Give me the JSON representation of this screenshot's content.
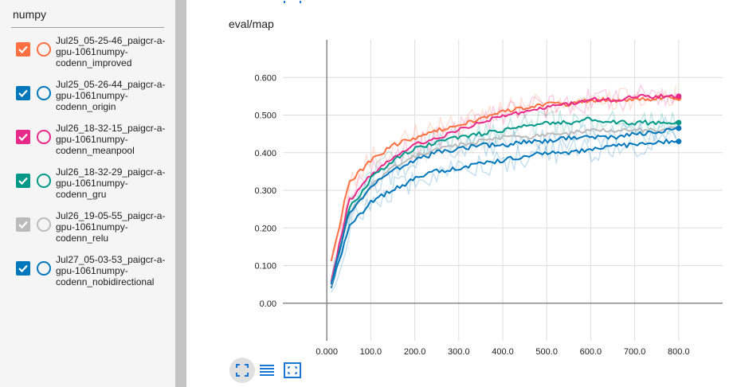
{
  "sidebar": {
    "search_value": "numpy",
    "runs": [
      {
        "label": "Jul25_05-25-46_paigcr-a-\ngpu-1061numpy-\ncodenn_improved",
        "color": "#ff7043",
        "checked": true
      },
      {
        "label": "Jul25_05-26-44_paigcr-a-\ngpu-1061numpy-\ncodenn_origin",
        "color": "#0077bb",
        "checked": true
      },
      {
        "label": "Jul26_18-32-15_paigcr-a-\ngpu-1061numpy-\ncodenn_meanpool",
        "color": "#e7298a",
        "checked": true
      },
      {
        "label": "Jul26_18-32-29_paigcr-a-\ngpu-1061numpy-\ncodenn_gru",
        "color": "#009988",
        "checked": true
      },
      {
        "label": "Jul26_19-05-55_paigcr-a-\ngpu-1061numpy-\ncodenn_relu",
        "color": "#bbbbbb",
        "checked": true
      },
      {
        "label": "Jul27_05-03-53_paigcr-a-\ngpu-1061numpy-\ncodenn_nobidirectional",
        "color": "#0077bb",
        "checked": true
      }
    ]
  },
  "toolbar": {
    "icons": [
      "fit-domain-icon",
      "toggle-log-scale-icon",
      "expand-chart-icon"
    ]
  },
  "chart_data": {
    "type": "line",
    "title": "eval/map",
    "xlabel": "",
    "ylabel": "",
    "xlim": [
      -100,
      900
    ],
    "ylim": [
      -0.1,
      0.7
    ],
    "xticks": [
      0,
      100,
      200,
      300,
      400,
      500,
      600,
      700,
      800
    ],
    "xtick_labels": [
      "0.000",
      "100.0",
      "200.0",
      "300.0",
      "400.0",
      "500.0",
      "600.0",
      "700.0",
      "800.0"
    ],
    "yticks": [
      0,
      0.1,
      0.2,
      0.3,
      0.4,
      0.5,
      0.6
    ],
    "ytick_labels": [
      "0.00",
      "0.100",
      "0.200",
      "0.300",
      "0.400",
      "0.500",
      "0.600"
    ],
    "grid": true,
    "x": [
      10,
      50,
      100,
      150,
      200,
      250,
      300,
      350,
      400,
      450,
      500,
      550,
      600,
      650,
      700,
      750,
      800
    ],
    "series": [
      {
        "name": "Jul25_05-25-46_paigcr-a-gpu-1061numpy-codenn_improved",
        "color": "#ff7043",
        "values": [
          0.11,
          0.32,
          0.38,
          0.42,
          0.44,
          0.46,
          0.47,
          0.49,
          0.51,
          0.52,
          0.53,
          0.53,
          0.54,
          0.54,
          0.54,
          0.545,
          0.545
        ]
      },
      {
        "name": "Jul25_05-26-44_paigcr-a-gpu-1061numpy-codenn_origin",
        "color": "#0077bb",
        "values": [
          0.04,
          0.2,
          0.27,
          0.3,
          0.33,
          0.35,
          0.36,
          0.37,
          0.38,
          0.39,
          0.4,
          0.4,
          0.41,
          0.42,
          0.42,
          0.43,
          0.43
        ]
      },
      {
        "name": "Jul26_18-32-15_paigcr-a-gpu-1061numpy-codenn_meanpool",
        "color": "#e7298a",
        "values": [
          0.06,
          0.27,
          0.34,
          0.39,
          0.42,
          0.44,
          0.46,
          0.48,
          0.5,
          0.51,
          0.52,
          0.53,
          0.54,
          0.54,
          0.55,
          0.55,
          0.55
        ]
      },
      {
        "name": "Jul26_18-32-29_paigcr-a-gpu-1061numpy-codenn_gru",
        "color": "#009988",
        "values": [
          0.05,
          0.25,
          0.33,
          0.38,
          0.41,
          0.43,
          0.44,
          0.45,
          0.46,
          0.47,
          0.48,
          0.48,
          0.49,
          0.48,
          0.48,
          0.48,
          0.48
        ]
      },
      {
        "name": "Jul26_19-05-55_paigcr-a-gpu-1061numpy-codenn_relu",
        "color": "#bbbbbb",
        "values": [
          0.05,
          0.24,
          0.31,
          0.36,
          0.39,
          0.41,
          0.42,
          0.43,
          0.44,
          0.44,
          0.45,
          0.45,
          0.46,
          0.46,
          0.46,
          0.46,
          0.465
        ]
      },
      {
        "name": "Jul27_05-03-53_paigcr-a-gpu-1061numpy-codenn_nobidirectional",
        "color": "#0077bb",
        "values": [
          0.05,
          0.24,
          0.31,
          0.35,
          0.38,
          0.4,
          0.41,
          0.42,
          0.42,
          0.43,
          0.43,
          0.44,
          0.44,
          0.44,
          0.45,
          0.455,
          0.465
        ]
      }
    ]
  }
}
